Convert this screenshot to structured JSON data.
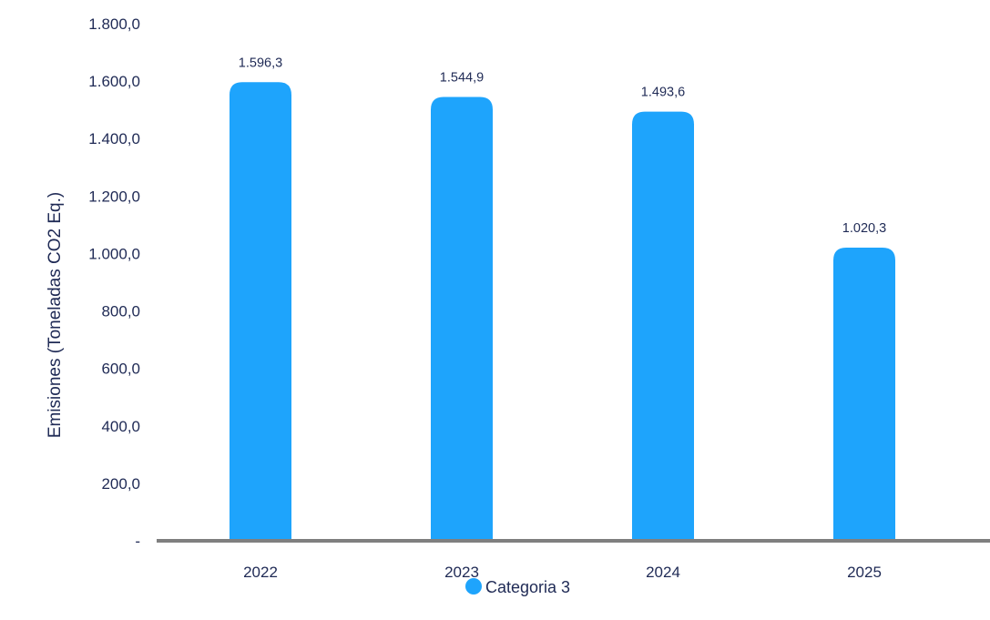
{
  "chart_data": {
    "type": "bar",
    "title": "",
    "xlabel": "",
    "ylabel": "Emisiones (Toneladas CO2 Eq.)",
    "categories": [
      "2022",
      "2023",
      "2024",
      "2025"
    ],
    "series": [
      {
        "name": "Categoria 3",
        "values": [
          1596.3,
          1544.9,
          1493.6,
          1020.3
        ],
        "value_labels": [
          "1.596,3",
          "1.544,9",
          "1.493,6",
          "1.020,3"
        ]
      }
    ],
    "ylim": [
      0,
      1800
    ],
    "yticks": [
      0,
      200,
      400,
      600,
      800,
      1000,
      1200,
      1400,
      1600,
      1800
    ],
    "ytick_labels": [
      "-",
      "200,0",
      "400,0",
      "600,0",
      "800,0",
      "1.000,0",
      "1.200,0",
      "1.400,0",
      "1.600,0",
      "1.800,0"
    ],
    "grid": false,
    "legend_position": "bottom",
    "colors": {
      "bar": "#1ea4fc",
      "axis": "#7f7f7f",
      "text": "#1f2a55"
    }
  }
}
